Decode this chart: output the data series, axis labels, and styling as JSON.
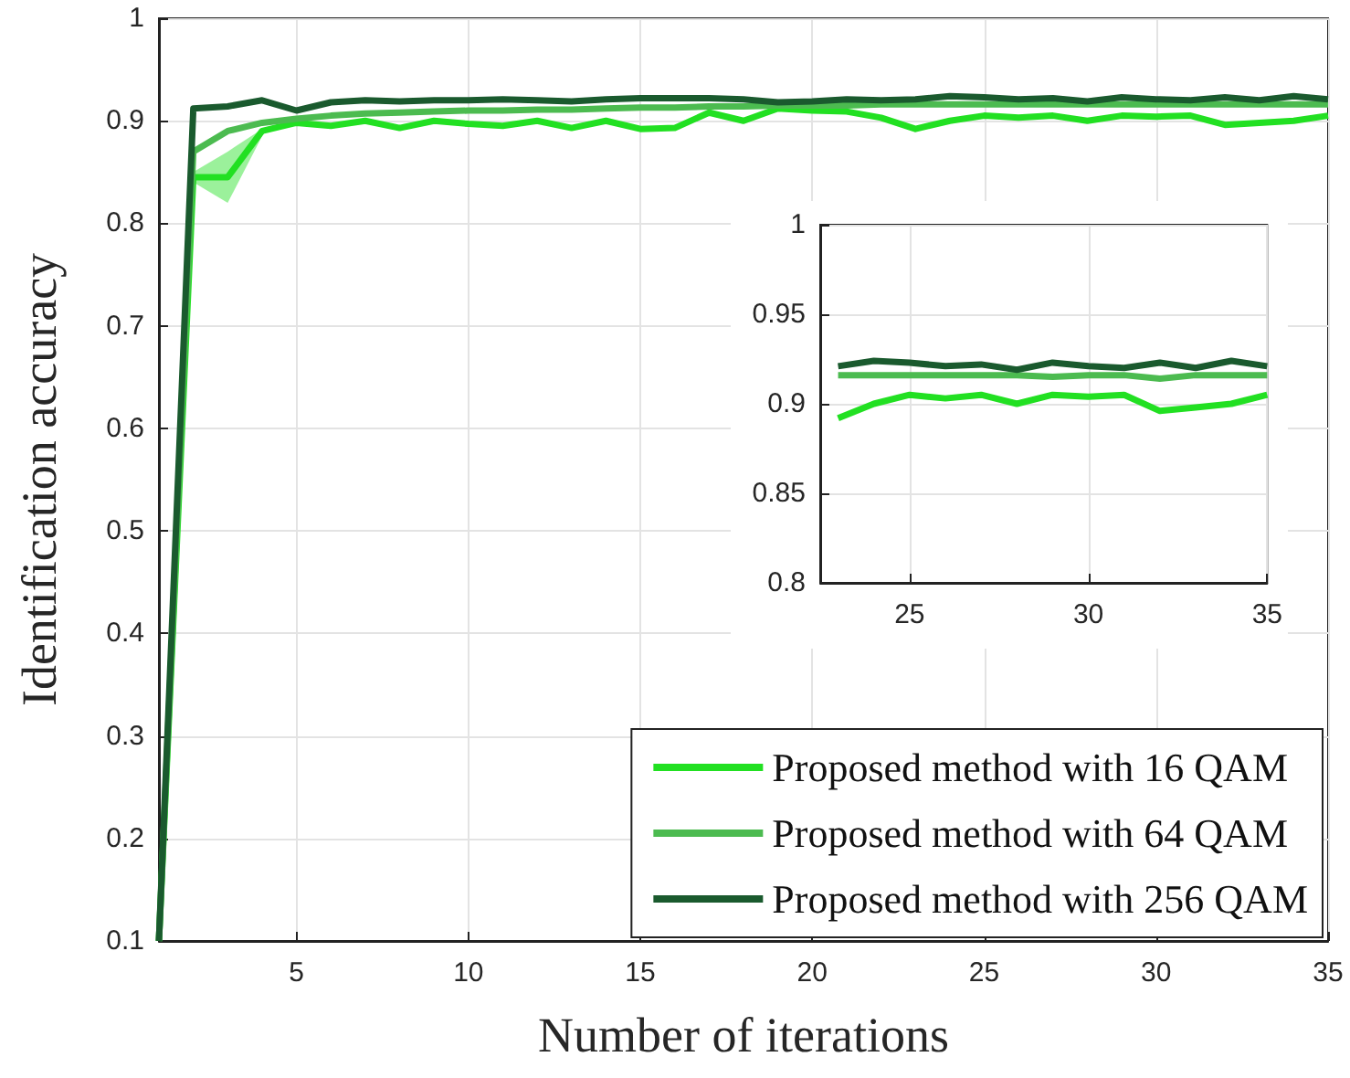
{
  "chart_data": [
    {
      "type": "line",
      "xlabel": "Number of iterations",
      "ylabel": "Identification accuracy",
      "x": [
        1,
        2,
        3,
        4,
        5,
        6,
        7,
        8,
        9,
        10,
        11,
        12,
        13,
        14,
        15,
        16,
        17,
        18,
        19,
        20,
        21,
        22,
        23,
        24,
        25,
        26,
        27,
        28,
        29,
        30,
        31,
        32,
        33,
        34,
        35
      ],
      "series": [
        {
          "name": "Proposed method with 16 QAM",
          "color": "#22e022",
          "values": [
            0.1,
            0.845,
            0.845,
            0.89,
            0.898,
            0.895,
            0.9,
            0.893,
            0.9,
            0.897,
            0.895,
            0.9,
            0.893,
            0.9,
            0.892,
            0.893,
            0.908,
            0.9,
            0.912,
            0.91,
            0.909,
            0.903,
            0.892,
            0.9,
            0.905,
            0.903,
            0.905,
            0.9,
            0.905,
            0.904,
            0.905,
            0.896,
            0.898,
            0.9,
            0.905
          ],
          "lower": [
            null,
            0.84,
            0.82,
            0.885,
            null,
            null,
            null,
            null,
            null,
            null,
            null,
            null,
            null,
            null,
            null,
            null,
            null,
            null,
            null,
            null,
            null,
            null,
            null,
            null,
            null,
            null,
            null,
            null,
            null,
            null,
            null,
            null,
            null,
            null,
            null
          ],
          "upper": [
            null,
            0.85,
            0.87,
            0.892,
            null,
            null,
            null,
            null,
            null,
            null,
            null,
            null,
            null,
            null,
            null,
            null,
            null,
            null,
            null,
            null,
            null,
            null,
            null,
            null,
            null,
            null,
            null,
            null,
            null,
            null,
            null,
            null,
            null,
            null,
            null
          ]
        },
        {
          "name": "Proposed method with 64 QAM",
          "color": "#4cbb50",
          "values": [
            0.1,
            0.87,
            0.89,
            0.898,
            0.902,
            0.905,
            0.907,
            0.908,
            0.909,
            0.91,
            0.91,
            0.911,
            0.911,
            0.912,
            0.913,
            0.913,
            0.914,
            0.914,
            0.915,
            0.915,
            0.915,
            0.916,
            0.916,
            0.916,
            0.916,
            0.916,
            0.916,
            0.916,
            0.916,
            0.916,
            0.916,
            0.916,
            0.916,
            0.916,
            0.916
          ]
        },
        {
          "name": "Proposed method with 256 QAM",
          "color": "#1a5a2e",
          "values": [
            0.1,
            0.912,
            0.914,
            0.92,
            0.91,
            0.918,
            0.92,
            0.919,
            0.92,
            0.92,
            0.921,
            0.92,
            0.919,
            0.921,
            0.922,
            0.922,
            0.922,
            0.921,
            0.918,
            0.919,
            0.921,
            0.92,
            0.921,
            0.924,
            0.923,
            0.921,
            0.922,
            0.919,
            0.923,
            0.921,
            0.92,
            0.923,
            0.92,
            0.924,
            0.921
          ]
        }
      ],
      "xlim": [
        1,
        35
      ],
      "xticks": [
        5,
        10,
        15,
        20,
        25,
        30,
        35
      ],
      "ylim": [
        0.1,
        1
      ],
      "yticks": [
        0.1,
        0.2,
        0.3,
        0.4,
        0.5,
        0.6,
        0.7,
        0.8,
        0.9,
        1
      ],
      "grid": true,
      "legend": "bottom right",
      "line_style": "solid",
      "marker": "none"
    },
    {
      "type": "line",
      "x": [
        23,
        24,
        25,
        26,
        27,
        28,
        29,
        30,
        31,
        32,
        33,
        34,
        35
      ],
      "series": [
        {
          "color": "#22e022",
          "values": [
            0.892,
            0.9,
            0.905,
            0.903,
            0.905,
            0.9,
            0.905,
            0.904,
            0.905,
            0.896,
            0.898,
            0.9,
            0.905
          ]
        },
        {
          "color": "#4cbb50",
          "values": [
            0.916,
            0.916,
            0.916,
            0.916,
            0.916,
            0.916,
            0.915,
            0.916,
            0.916,
            0.914,
            0.916,
            0.916,
            0.916
          ]
        },
        {
          "color": "#1a5a2e",
          "values": [
            0.921,
            0.924,
            0.923,
            0.921,
            0.922,
            0.919,
            0.923,
            0.921,
            0.92,
            0.923,
            0.92,
            0.924,
            0.921
          ]
        }
      ],
      "xlim": [
        22.5,
        35
      ],
      "xticks": [
        25,
        30,
        35
      ],
      "ylim": [
        0.8,
        1
      ],
      "yticks": [
        0.8,
        0.85,
        0.9,
        0.95,
        1
      ],
      "grid": true,
      "line_style": "solid",
      "marker": "none"
    }
  ]
}
